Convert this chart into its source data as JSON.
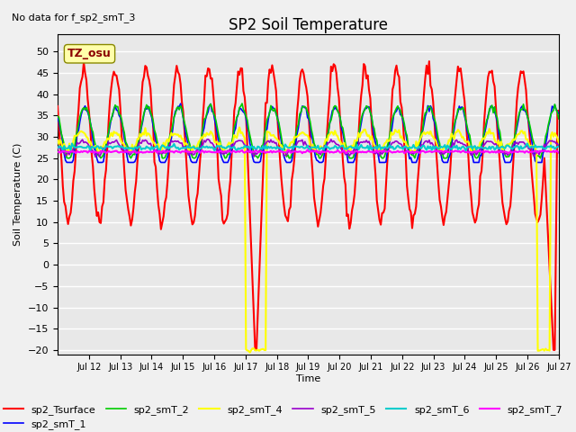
{
  "title": "SP2 Soil Temperature",
  "subtitle": "No data for f_sp2_smT_3",
  "ylabel": "Soil Temperature (C)",
  "xlabel": "Time",
  "tz_label": "TZ_osu",
  "ylim": [
    -20,
    52
  ],
  "yticks": [
    -20,
    -15,
    -10,
    -5,
    0,
    5,
    10,
    15,
    20,
    25,
    30,
    35,
    40,
    45,
    50
  ],
  "xtick_labels": [
    "Jul 12",
    "Jul 13",
    "Jul 14",
    "Jul 15",
    "Jul 16",
    "Jul 17",
    "Jul 18",
    "Jul 19",
    "Jul 20",
    "Jul 21",
    "Jul 22",
    "Jul 23",
    "Jul 24",
    "Jul 25",
    "Jul 26",
    "Jul 27"
  ],
  "series": {
    "sp2_Tsurface": {
      "color": "#FF0000",
      "lw": 1.5
    },
    "sp2_smT_1": {
      "color": "#0000FF",
      "lw": 1.2
    },
    "sp2_smT_2": {
      "color": "#00CC00",
      "lw": 1.2
    },
    "sp2_smT_4": {
      "color": "#FFFF00",
      "lw": 1.5
    },
    "sp2_smT_5": {
      "color": "#9900CC",
      "lw": 1.2
    },
    "sp2_smT_6": {
      "color": "#00CCCC",
      "lw": 1.5
    },
    "sp2_smT_7": {
      "color": "#FF00FF",
      "lw": 1.5
    }
  },
  "bg_color": "#E8E8E8",
  "grid_color": "#FFFFFF"
}
